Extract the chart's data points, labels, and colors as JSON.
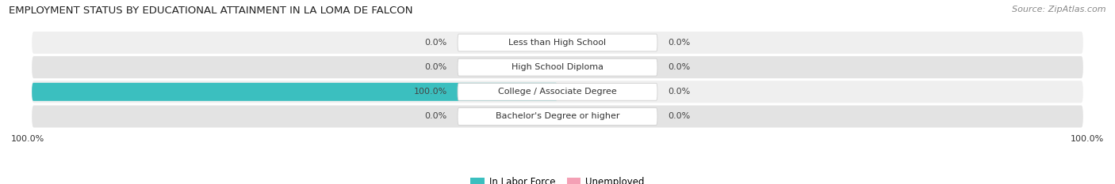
{
  "title": "EMPLOYMENT STATUS BY EDUCATIONAL ATTAINMENT IN LA LOMA DE FALCON",
  "source": "Source: ZipAtlas.com",
  "categories": [
    "Less than High School",
    "High School Diploma",
    "College / Associate Degree",
    "Bachelor's Degree or higher"
  ],
  "labor_force": [
    0.0,
    0.0,
    100.0,
    0.0
  ],
  "unemployed": [
    0.0,
    0.0,
    0.0,
    0.0
  ],
  "labor_force_color": "#3bbfbf",
  "unemployed_color": "#f4a0b5",
  "row_bg_light": "#efefef",
  "row_bg_dark": "#e3e3e3",
  "label_left": [
    "0.0%",
    "0.0%",
    "100.0%",
    "0.0%"
  ],
  "label_right": [
    "0.0%",
    "0.0%",
    "0.0%",
    "0.0%"
  ],
  "x_left_label": "100.0%",
  "x_right_label": "100.0%",
  "legend_labor": "In Labor Force",
  "legend_unemployed": "Unemployed",
  "figsize": [
    14.06,
    2.33
  ],
  "dpi": 100,
  "title_fontsize": 9.5,
  "source_fontsize": 8,
  "label_fontsize": 8,
  "cat_fontsize": 8,
  "legend_fontsize": 8.5,
  "axis_label_fontsize": 8
}
